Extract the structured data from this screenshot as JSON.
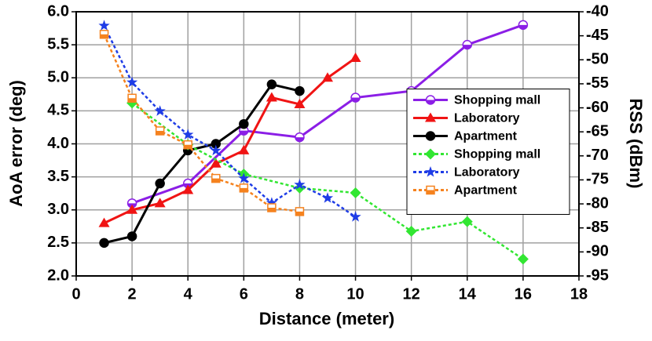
{
  "chart_data": {
    "type": "line",
    "xlabel": "Distance (meter)",
    "ylabel": "AoA error (deg)",
    "y2label": "RSS (dBm)",
    "xlim": [
      0,
      18
    ],
    "xticks": [
      0,
      2,
      4,
      6,
      8,
      10,
      12,
      14,
      16,
      18
    ],
    "ylim": [
      2,
      6
    ],
    "yticks": [
      {
        "value": 2,
        "label": "2.0"
      },
      {
        "value": 2.5,
        "label": "2.5"
      },
      {
        "value": 3,
        "label": "3.0"
      },
      {
        "value": 3.5,
        "label": "3.5"
      },
      {
        "value": 4,
        "label": "4.0"
      },
      {
        "value": 4.5,
        "label": "4.5"
      },
      {
        "value": 5,
        "label": "5.0"
      },
      {
        "value": 5.5,
        "label": "5.5"
      },
      {
        "value": 6,
        "label": "6.0"
      }
    ],
    "y2lim": [
      -95,
      -40
    ],
    "y2ticks": [
      -95,
      -90,
      -85,
      -80,
      -75,
      -70,
      -65,
      -60,
      -55,
      -50,
      -45,
      -40
    ],
    "grid": true,
    "legend": "center right",
    "series": [
      {
        "name": "Shopping mall",
        "color": "#8b1ee6",
        "marker": "half-circle",
        "dashed": false,
        "x": [
          2,
          4,
          6,
          8,
          10,
          12,
          14,
          16
        ],
        "values": [
          3.1,
          3.4,
          4.2,
          4.1,
          4.7,
          4.8,
          5.5,
          5.8
        ]
      },
      {
        "name": "Laboratory",
        "color": "#f01414",
        "marker": "triangle",
        "dashed": false,
        "x": [
          1,
          2,
          3,
          4,
          5,
          6,
          7,
          8,
          9,
          10
        ],
        "values": [
          2.8,
          3.0,
          3.1,
          3.3,
          3.7,
          3.9,
          4.7,
          4.6,
          5.0,
          5.3
        ]
      },
      {
        "name": "Apartment",
        "color": "#000000",
        "marker": "circle",
        "dashed": false,
        "x": [
          1,
          2,
          3,
          4,
          5,
          6,
          7,
          8
        ],
        "values": [
          2.5,
          2.6,
          3.4,
          3.9,
          4.0,
          4.3,
          4.9,
          4.8
        ]
      },
      {
        "name": "Shopping mall",
        "color": "#32e632",
        "marker": "diamond",
        "dashed": true,
        "axis": "y2",
        "x": [
          2,
          4,
          6,
          8,
          10,
          12,
          14,
          16
        ],
        "values": [
          -59,
          -67.7,
          -73.8,
          -76.7,
          -77.7,
          -85.7,
          -83.7,
          -91.5
        ]
      },
      {
        "name": "Laboratory",
        "color": "#1e3ce6",
        "marker": "star",
        "dashed": true,
        "axis": "y2",
        "x": [
          1,
          2,
          3,
          4,
          5,
          6,
          7,
          8,
          9,
          10
        ],
        "values": [
          -42.9,
          -54.7,
          -60.7,
          -65.6,
          -68.9,
          -74.7,
          -79.8,
          -76,
          -78.8,
          -82.7
        ]
      },
      {
        "name": "Apartment",
        "color": "#f5821e",
        "marker": "square",
        "dashed": true,
        "axis": "y2",
        "x": [
          1,
          2,
          3,
          4,
          5,
          6,
          7,
          8
        ],
        "values": [
          -44.7,
          -58,
          -64.8,
          -67.7,
          -74.7,
          -76.7,
          -80.8,
          -81.6
        ]
      }
    ]
  }
}
